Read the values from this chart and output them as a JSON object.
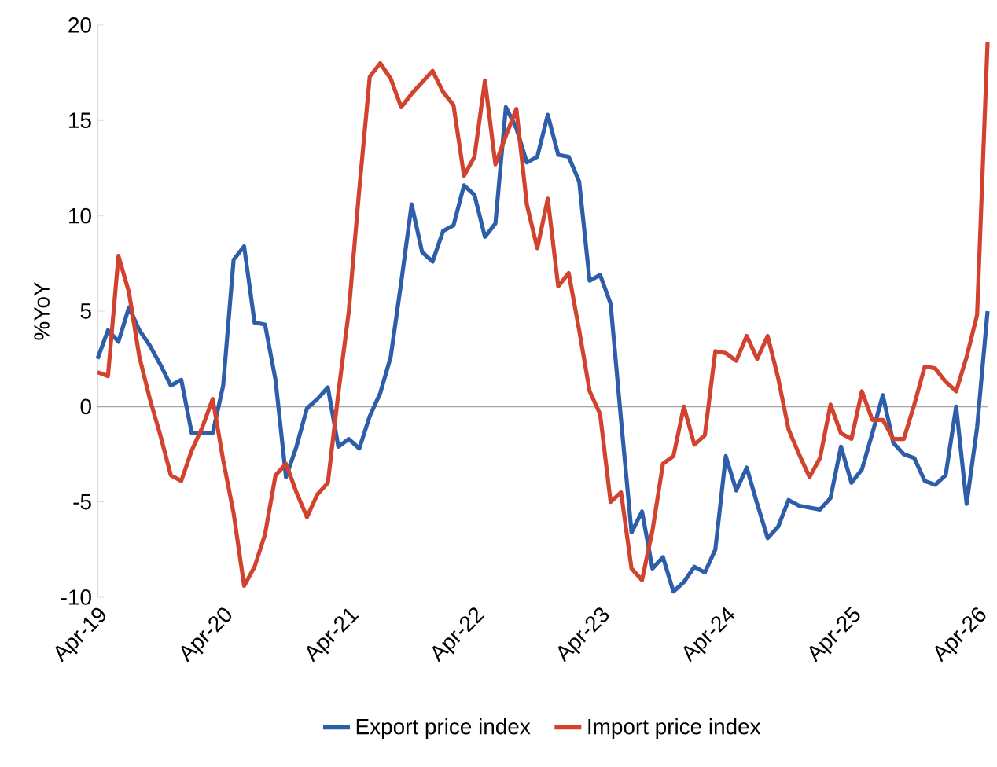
{
  "chart_data": {
    "type": "line",
    "ylabel": "%YoY",
    "categories": [
      "Apr-19",
      null,
      null,
      null,
      null,
      null,
      null,
      null,
      null,
      null,
      null,
      null,
      "Apr-20",
      null,
      null,
      null,
      null,
      null,
      null,
      null,
      null,
      null,
      null,
      null,
      "Apr-21",
      null,
      null,
      null,
      null,
      null,
      null,
      null,
      null,
      null,
      null,
      null,
      "Apr-22",
      null,
      null,
      null,
      null,
      null,
      null,
      null,
      null,
      null,
      null,
      null,
      "Apr-23",
      null,
      null,
      null,
      null,
      null,
      null,
      null,
      null,
      null,
      null,
      null,
      "Apr-24",
      null,
      null,
      null,
      null,
      null,
      null,
      null,
      null,
      null,
      null,
      null,
      "Apr-25",
      null,
      null,
      null,
      null,
      null,
      null,
      null,
      null,
      null,
      null,
      null,
      "Apr-26",
      null
    ],
    "ylim": [
      -10,
      20
    ],
    "yticks": [
      -10,
      -5,
      0,
      5,
      10,
      15,
      20
    ],
    "grid": false,
    "ref_lines": [
      {
        "axis": "y",
        "value": 0,
        "color": "#a6a6a6"
      }
    ],
    "legend": "bottom",
    "marker": "none",
    "line_style": "solid",
    "series": [
      {
        "name": "Export price index",
        "color": "#2e5eaa",
        "values": [
          2.5,
          4.0,
          3.4,
          5.2,
          4.0,
          3.2,
          2.2,
          1.1,
          1.4,
          -1.4,
          -1.4,
          -1.4,
          1.1,
          7.7,
          8.4,
          4.4,
          4.3,
          1.4,
          -3.7,
          -2.1,
          -0.1,
          0.4,
          1.0,
          -2.1,
          -1.7,
          -2.2,
          -0.5,
          0.7,
          2.6,
          6.5,
          10.6,
          8.1,
          7.6,
          9.2,
          9.5,
          11.6,
          11.1,
          8.9,
          9.6,
          15.7,
          14.6,
          12.8,
          13.1,
          15.3,
          13.2,
          13.1,
          11.8,
          6.6,
          6.9,
          5.4,
          -0.7,
          -6.6,
          -5.5,
          -8.5,
          -7.9,
          -9.7,
          -9.2,
          -8.4,
          -8.7,
          -7.5,
          -2.6,
          -4.4,
          -3.2,
          -5.1,
          -6.9,
          -6.3,
          -4.9,
          -5.2,
          -5.3,
          -5.4,
          -4.8,
          -2.1,
          -4.0,
          -3.3,
          -1.4,
          0.6,
          -1.9,
          -2.5,
          -2.7,
          -3.9,
          -4.1,
          -3.6,
          0.0,
          -5.1,
          -1.1,
          5.0
        ]
      },
      {
        "name": "Import price index",
        "color": "#d2432f",
        "values": [
          1.8,
          1.6,
          7.9,
          6.0,
          2.6,
          0.4,
          -1.5,
          -3.6,
          -3.9,
          -2.3,
          -1.1,
          0.4,
          -2.8,
          -5.6,
          -9.4,
          -8.4,
          -6.7,
          -3.6,
          -3.0,
          -4.5,
          -5.8,
          -4.6,
          -4.0,
          0.7,
          5.0,
          11.4,
          17.3,
          18.0,
          17.2,
          15.7,
          16.4,
          17.0,
          17.6,
          16.5,
          15.8,
          12.1,
          13.1,
          17.1,
          12.7,
          14.2,
          15.6,
          10.6,
          8.3,
          10.9,
          6.3,
          7.0,
          4.0,
          0.8,
          -0.4,
          -5.0,
          -4.5,
          -8.5,
          -9.1,
          -6.5,
          -3.0,
          -2.6,
          0.0,
          -2.0,
          -1.5,
          2.9,
          2.8,
          2.4,
          3.7,
          2.5,
          3.7,
          1.5,
          -1.2,
          -2.5,
          -3.7,
          -2.7,
          0.1,
          -1.4,
          -1.7,
          0.8,
          -0.7,
          -0.7,
          -1.7,
          -1.7,
          0.1,
          2.1,
          2.0,
          1.3,
          0.8,
          2.6,
          4.8,
          19.1
        ]
      }
    ]
  }
}
